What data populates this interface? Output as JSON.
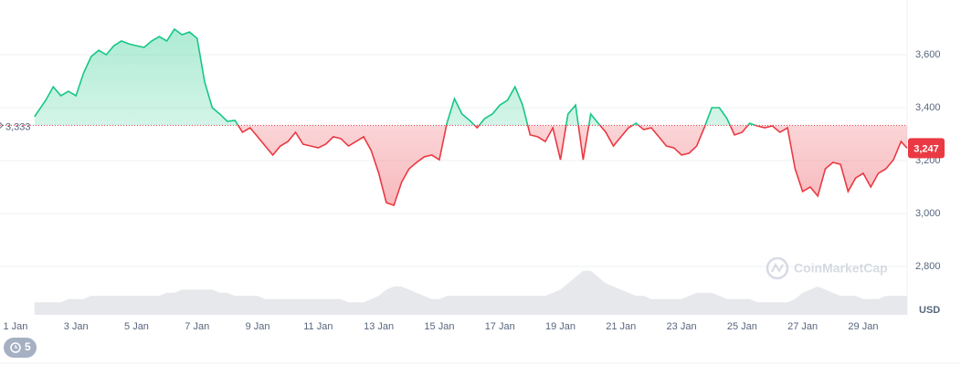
{
  "chart_data": {
    "type": "baseline_line",
    "x": [
      1.63,
      2.0,
      2.25,
      2.5,
      2.75,
      3.0,
      3.25,
      3.5,
      3.75,
      4.0,
      4.25,
      4.5,
      4.75,
      5.0,
      5.25,
      5.5,
      5.75,
      6.0,
      6.25,
      6.5,
      6.75,
      7.0,
      7.25,
      7.5,
      7.75,
      8.0,
      8.25,
      8.5,
      8.75,
      9.0,
      9.25,
      9.5,
      9.75,
      10.0,
      10.25,
      10.5,
      10.75,
      11.0,
      11.25,
      11.5,
      11.75,
      12.0,
      12.25,
      12.5,
      12.75,
      13.0,
      13.25,
      13.5,
      13.75,
      14.0,
      14.25,
      14.5,
      14.75,
      15.0,
      15.25,
      15.5,
      15.75,
      16.0,
      16.25,
      16.5,
      16.75,
      17.0,
      17.25,
      17.5,
      17.75,
      18.0,
      18.25,
      18.5,
      18.75,
      19.0,
      19.25,
      19.5,
      19.75,
      20.0,
      20.25,
      20.5,
      20.75,
      21.0,
      21.25,
      21.5,
      21.75,
      22.0,
      22.25,
      22.5,
      22.75,
      23.0,
      23.25,
      23.5,
      23.75,
      24.0,
      24.25,
      24.5,
      24.75,
      25.0,
      25.25,
      25.5,
      25.75,
      26.0,
      26.25,
      26.5,
      26.75,
      27.0,
      27.25,
      27.5,
      27.75,
      28.0,
      28.25,
      28.5,
      28.75,
      29.0,
      29.25,
      29.5,
      29.75,
      30.0,
      30.25,
      30.45
    ],
    "series": [
      {
        "color": "#16c784",
        "color_below": "#ea3943",
        "values": [
          3366,
          3428,
          3479,
          3445,
          3462,
          3445,
          3531,
          3593,
          3617,
          3600,
          3634,
          3652,
          3641,
          3634,
          3628,
          3652,
          3669,
          3652,
          3697,
          3676,
          3686,
          3662,
          3497,
          3400,
          3376,
          3348,
          3352,
          3307,
          3324,
          3290,
          3255,
          3221,
          3255,
          3272,
          3307,
          3262,
          3255,
          3248,
          3262,
          3290,
          3283,
          3255,
          3272,
          3290,
          3238,
          3152,
          3041,
          3031,
          3117,
          3169,
          3193,
          3214,
          3221,
          3203,
          3341,
          3434,
          3376,
          3352,
          3324,
          3359,
          3376,
          3410,
          3428,
          3479,
          3410,
          3297,
          3290,
          3272,
          3324,
          3203,
          3376,
          3410,
          3203,
          3376,
          3341,
          3307,
          3255,
          3290,
          3324,
          3341,
          3317,
          3324,
          3290,
          3255,
          3248,
          3221,
          3228,
          3255,
          3324,
          3400,
          3400,
          3359,
          3297,
          3307,
          3341,
          3331,
          3324,
          3331,
          3307,
          3324,
          3169,
          3083,
          3100,
          3066,
          3169,
          3193,
          3186,
          3083,
          3134,
          3152,
          3100,
          3152,
          3169,
          3203,
          3272,
          3247
        ]
      },
      {
        "axis": "y2",
        "color": "#e6e8ec",
        "values": [
          4,
          4,
          4,
          4,
          5,
          5,
          5,
          6,
          6,
          6,
          6,
          6,
          6,
          6,
          6,
          6,
          6,
          7,
          7,
          8,
          8,
          8,
          8,
          8,
          7,
          7,
          6,
          6,
          6,
          6,
          5,
          5,
          5,
          5,
          5,
          5,
          5,
          5,
          5,
          5,
          5,
          4,
          4,
          4,
          5,
          6,
          8,
          9,
          9,
          8,
          7,
          6,
          5,
          5,
          6,
          6,
          6,
          6,
          6,
          6,
          6,
          6,
          6,
          6,
          6,
          6,
          6,
          6,
          7,
          8,
          10,
          12,
          14,
          14,
          12,
          10,
          9,
          8,
          7,
          6,
          6,
          5,
          5,
          5,
          5,
          5,
          6,
          7,
          7,
          7,
          6,
          5,
          5,
          5,
          5,
          4,
          4,
          4,
          4,
          4,
          5,
          7,
          8,
          9,
          8,
          7,
          6,
          6,
          6,
          5,
          5,
          5,
          6,
          6,
          6,
          6
        ]
      }
    ],
    "xlim": [
      0.49,
      30.45
    ],
    "xticks": [
      {
        "value": 1,
        "label": "1 Jan"
      },
      {
        "value": 3,
        "label": "3 Jan"
      },
      {
        "value": 5,
        "label": "5 Jan"
      },
      {
        "value": 7,
        "label": "7 Jan"
      },
      {
        "value": 9,
        "label": "9 Jan"
      },
      {
        "value": 11,
        "label": "11 Jan"
      },
      {
        "value": 13,
        "label": "13 Jan"
      },
      {
        "value": 15,
        "label": "15 Jan"
      },
      {
        "value": 17,
        "label": "17 Jan"
      },
      {
        "value": 19,
        "label": "19 Jan"
      },
      {
        "value": 21,
        "label": "21 Jan"
      },
      {
        "value": 23,
        "label": "23 Jan"
      },
      {
        "value": 25,
        "label": "25 Jan"
      },
      {
        "value": 27,
        "label": "27 Jan"
      },
      {
        "value": 29,
        "label": "29 Jan"
      }
    ],
    "ylim": [
      2617,
      3807
    ],
    "yticks": [
      {
        "value": 2800,
        "label": "2,800"
      },
      {
        "value": 3000,
        "label": "3,000"
      },
      {
        "value": 3200,
        "label": "3,200"
      },
      {
        "value": 3400,
        "label": "3,400"
      },
      {
        "value": 3600,
        "label": "3,600"
      }
    ],
    "y2lim": [
      0,
      100
    ],
    "grid": true,
    "y_unit": "USD",
    "baseline": {
      "value": 3333,
      "label": "3,333"
    },
    "current_price": {
      "value": 3247,
      "label": "3,247"
    },
    "watermark": "CoinMarketCap"
  },
  "badge": "5"
}
